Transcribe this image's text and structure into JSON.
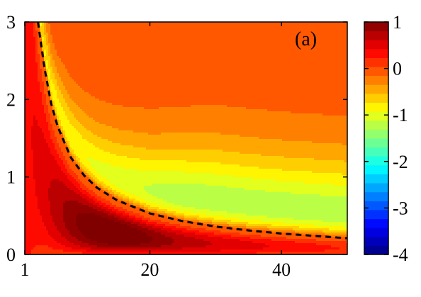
{
  "chart_data": {
    "type": "heatmap",
    "panel_label": "(a)",
    "xlabel": "",
    "ylabel": "",
    "xlim": [
      1,
      50
    ],
    "ylim": [
      0,
      3
    ],
    "x_ticks": [
      {
        "value": 1,
        "label": "1"
      },
      {
        "value": 20,
        "label": "20"
      },
      {
        "value": 40,
        "label": "40"
      }
    ],
    "y_ticks": [
      {
        "value": 0,
        "label": "0"
      },
      {
        "value": 1,
        "label": "1"
      },
      {
        "value": 2,
        "label": "2"
      },
      {
        "value": 3,
        "label": "3"
      }
    ],
    "colorbar": {
      "range": [
        -4,
        1
      ],
      "ticks": [
        {
          "value": 1,
          "label": "1"
        },
        {
          "value": 0,
          "label": "0"
        },
        {
          "value": -1,
          "label": "-1"
        },
        {
          "value": -2,
          "label": "-2"
        },
        {
          "value": -3,
          "label": "-3"
        },
        {
          "value": -4,
          "label": "-4"
        }
      ],
      "colormap": "jet"
    },
    "contour_levels": 26,
    "boundary_curve": {
      "style": "dashed",
      "color": "#000000",
      "points": [
        {
          "x": 3,
          "y": 3.0
        },
        {
          "x": 4,
          "y": 2.4
        },
        {
          "x": 5,
          "y": 1.95
        },
        {
          "x": 6,
          "y": 1.65
        },
        {
          "x": 8,
          "y": 1.25
        },
        {
          "x": 10,
          "y": 1.02
        },
        {
          "x": 12,
          "y": 0.86
        },
        {
          "x": 15,
          "y": 0.7
        },
        {
          "x": 20,
          "y": 0.53
        },
        {
          "x": 25,
          "y": 0.43
        },
        {
          "x": 30,
          "y": 0.36
        },
        {
          "x": 35,
          "y": 0.31
        },
        {
          "x": 40,
          "y": 0.27
        },
        {
          "x": 45,
          "y": 0.24
        },
        {
          "x": 50,
          "y": 0.21
        }
      ]
    }
  }
}
